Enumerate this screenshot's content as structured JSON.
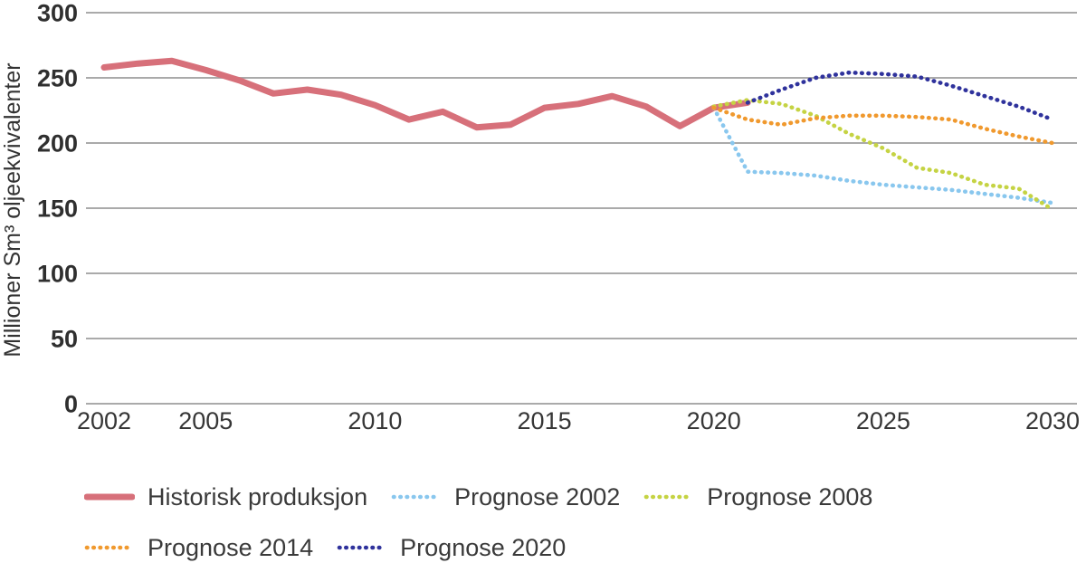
{
  "chart_data": {
    "type": "line",
    "title": "",
    "xlabel": "",
    "ylabel": "Millioner Sm³ oljeekvivalenter",
    "xlim": [
      2002,
      2030
    ],
    "ylim": [
      0,
      300
    ],
    "ytick_step": 50,
    "yticks": [
      0,
      50,
      100,
      150,
      200,
      250,
      300
    ],
    "xticks": [
      2002,
      2005,
      2010,
      2015,
      2020,
      2025,
      2030
    ],
    "grid": "horizontal",
    "legend_position": "bottom",
    "colors": {
      "gridline": "#9e9e9e",
      "tick_text": "#2f2f2f",
      "legend_text": "#3a3a3a"
    },
    "series": [
      {
        "label": "Historisk produksjon",
        "style": "solid",
        "color": "#d7707a",
        "start_year": 2002,
        "values": [
          258,
          261,
          263,
          256,
          248,
          238,
          241,
          237,
          229,
          218,
          224,
          212,
          214,
          227,
          230,
          236,
          228,
          213,
          227,
          231
        ]
      },
      {
        "label": "Prognose 2002",
        "style": "dotted",
        "color": "#89c7ee",
        "start_year": 2020,
        "values": [
          227,
          178,
          177,
          175,
          171,
          168,
          166,
          164,
          161,
          158,
          154
        ]
      },
      {
        "label": "Prognose 2008",
        "style": "dotted",
        "color": "#c5d343",
        "start_year": 2020,
        "values": [
          228,
          233,
          230,
          221,
          207,
          196,
          181,
          177,
          168,
          165,
          149
        ]
      },
      {
        "label": "Prognose 2014",
        "style": "dotted",
        "color": "#f0992e",
        "start_year": 2020,
        "values": [
          227,
          218,
          214,
          219,
          221,
          221,
          220,
          218,
          211,
          205,
          200
        ]
      },
      {
        "label": "Prognose 2020",
        "style": "dotted",
        "color": "#2f329c",
        "start_year": 2021,
        "values": [
          231,
          241,
          250,
          254,
          253,
          251,
          244,
          236,
          228,
          218
        ]
      }
    ],
    "legend_rows": [
      [
        0,
        1,
        2
      ],
      [
        3,
        4
      ]
    ]
  }
}
